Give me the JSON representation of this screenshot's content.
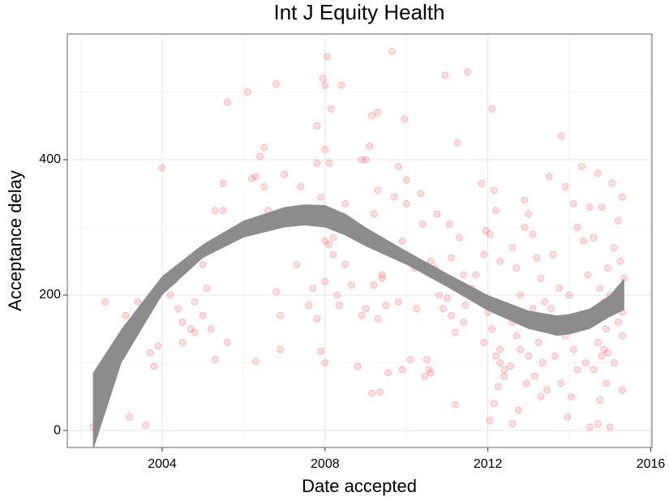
{
  "chart_data": {
    "type": "scatter",
    "title": "Int J Equity Health",
    "x_label": "Date accepted",
    "y_label": "Acceptance delay",
    "xlim": [
      2001.67,
      2016.03
    ],
    "ylim": [
      -25.1,
      585.6
    ],
    "xticks": [
      2004,
      2008,
      2012,
      2016
    ],
    "yticks": [
      0,
      200,
      400
    ],
    "x_minor_ticks": [
      2002,
      2006,
      2010,
      2014
    ],
    "y_minor_ticks": [
      100,
      300,
      500
    ],
    "grid": true,
    "color": "#ff0000",
    "x": [
      2002.3,
      2002.4,
      2002.6,
      2003.1,
      2003.2,
      2003.25,
      2003.4,
      2003.6,
      2003.7,
      2003.8,
      2003.9,
      2004,
      2004.2,
      2004.3,
      2004.4,
      2004.5,
      2004.5,
      2004.7,
      2004.8,
      2004.8,
      2005,
      2005,
      2005.1,
      2005.2,
      2005.3,
      2005.3,
      2005.5,
      2005.5,
      2005.6,
      2005.6,
      2006.1,
      2006.2,
      2006.3,
      2006.3,
      2006.4,
      2006.5,
      2006.5,
      2006.6,
      2006.8,
      2006.8,
      2006.9,
      2006.9,
      2007,
      2007.3,
      2007.4,
      2007.6,
      2007.7,
      2007.8,
      2007.8,
      2007.9,
      2007.9,
      2008,
      2008,
      2008,
      2008,
      2008.05,
      2008,
      2007.95,
      2008.15,
      2007.8,
      2008.1,
      2008.2,
      2008.1,
      2008.2,
      2008.3,
      2008.35,
      2008.4,
      2008.5,
      2008.9,
      2008.5,
      2008.65,
      2008.8,
      2008.9,
      2009,
      2009,
      2009.1,
      2009.15,
      2009.3,
      2009.2,
      2009.3,
      2009.2,
      2009.4,
      2009.15,
      2009.35,
      2009.3,
      2009.5,
      2009.4,
      2009.65,
      2009.7,
      2009.8,
      2009.95,
      2009.9,
      2010,
      2010.1,
      2010.2,
      2009.8,
      2010.25,
      2009.55,
      2009.9,
      2010.1,
      2010.45,
      2010,
      2010.35,
      2010,
      2010.4,
      2010.6,
      2010.7,
      2010.8,
      2010.9,
      2011,
      2011.1,
      2011.2,
      2010.55,
      2010.6,
      2010.5,
      2010.95,
      2011.05,
      2010.75,
      2011.3,
      2011.1,
      2011.4,
      2011.35,
      2011.45,
      2011.2,
      2011.4,
      2011.5,
      2011.25,
      2011.85,
      2011.95,
      2012.05,
      2011.9,
      2011.7,
      2011.6,
      2011.8,
      2012,
      2012.1,
      2011.9,
      2012.2,
      2012.3,
      2012.4,
      2012.15,
      2012.05,
      2012.1,
      2012.15,
      2012.2,
      2012.3,
      2012.45,
      2012.3,
      2012.4,
      2012.25,
      2012.9,
      2013,
      2012.9,
      2013.1,
      2012.6,
      2013.2,
      2012.7,
      2013.3,
      2012.8,
      2013.4,
      2013.1,
      2012.6,
      2012.7,
      2013.25,
      2012.8,
      2013,
      2013.35,
      2012.55,
      2013.15,
      2012.95,
      2013.45,
      2013.3,
      2012.75,
      2012.6,
      2013.8,
      2013.5,
      2013.9,
      2014.1,
      2014.2,
      2014.35,
      2013.6,
      2014.45,
      2013.75,
      2014,
      2013.55,
      2014.3,
      2013.9,
      2014.1,
      2013.65,
      2014.4,
      2014.2,
      2013.8,
      2014.05,
      2013.95,
      2014.5,
      2014.3,
      2014.5,
      2014.7,
      2015.05,
      2015.3,
      2014.8,
      2015.2,
      2014.6,
      2015.1,
      2015.25,
      2014.95,
      2015.35,
      2014.75,
      2015,
      2014.85,
      2015.15,
      2015.3,
      2014.65,
      2015.2,
      2014.9,
      2015.3,
      2014.7,
      2014.85,
      2014.95,
      2014.8,
      2015.1,
      2014.6,
      2014.9,
      2015.3,
      2014.75,
      2014.7,
      2015
    ],
    "y": [
      5,
      15,
      190,
      170,
      20,
      135,
      190,
      8,
      115,
      95,
      125,
      388,
      200,
      222,
      180,
      160,
      130,
      150,
      190,
      145,
      245,
      170,
      210,
      150,
      105,
      325,
      325,
      365,
      485,
      130,
      500,
      372,
      102,
      375,
      405,
      418,
      360,
      325,
      205,
      512,
      120,
      170,
      378,
      245,
      360,
      185,
      210,
      395,
      165,
      345,
      117,
      220,
      100,
      415,
      280,
      552,
      510,
      520,
      475,
      450,
      395,
      285,
      275,
      260,
      200,
      185,
      510,
      335,
      400,
      245,
      215,
      95,
      170,
      180,
      400,
      420,
      465,
      470,
      320,
      355,
      215,
      225,
      55,
      57,
      165,
      185,
      230,
      560,
      345,
      390,
      460,
      280,
      260,
      250,
      240,
      190,
      180,
      85,
      90,
      105,
      80,
      335,
      350,
      370,
      305,
      250,
      240,
      200,
      180,
      195,
      170,
      145,
      90,
      85,
      105,
      525,
      305,
      320,
      285,
      255,
      230,
      215,
      185,
      38,
      160,
      530,
      425,
      365,
      295,
      290,
      260,
      230,
      210,
      195,
      175,
      150,
      130,
      110,
      100,
      80,
      40,
      15,
      475,
      355,
      325,
      250,
      185,
      120,
      90,
      65,
      340,
      320,
      300,
      290,
      270,
      255,
      240,
      225,
      200,
      190,
      180,
      160,
      140,
      130,
      120,
      110,
      100,
      95,
      80,
      70,
      60,
      50,
      30,
      10,
      435,
      375,
      360,
      335,
      300,
      280,
      260,
      230,
      210,
      200,
      180,
      160,
      140,
      120,
      110,
      100,
      90,
      70,
      50,
      20,
      5,
      390,
      330,
      380,
      365,
      345,
      330,
      310,
      285,
      270,
      250,
      240,
      225,
      210,
      200,
      190,
      180,
      175,
      165,
      160,
      150,
      140,
      130,
      120,
      115,
      110,
      100,
      90,
      70,
      60,
      45,
      10,
      5
    ],
    "smooth": {
      "color": "#8c8c8c",
      "x": [
        2002.3,
        2003,
        2004,
        2005,
        2006,
        2007,
        2007.5,
        2008,
        2008.5,
        2009,
        2010,
        2011,
        2012,
        2013,
        2013.7,
        2014,
        2014.5,
        2015,
        2015.35
      ],
      "upper": [
        85,
        150,
        228,
        275,
        310,
        330,
        334,
        333,
        320,
        300,
        265,
        232,
        200,
        177,
        170,
        172,
        180,
        200,
        225
      ],
      "lower": [
        -30,
        100,
        200,
        255,
        285,
        300,
        303,
        300,
        288,
        272,
        245,
        212,
        177,
        150,
        140,
        142,
        150,
        168,
        178
      ]
    }
  }
}
